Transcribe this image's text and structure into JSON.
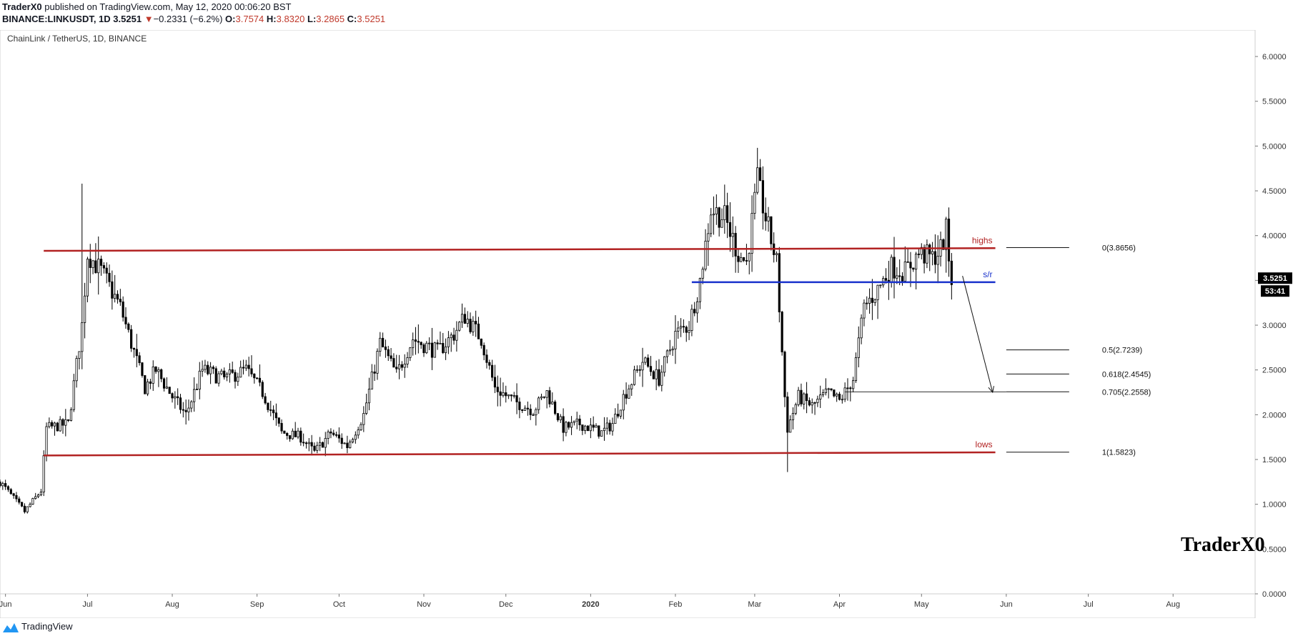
{
  "header": {
    "author": "TraderX0",
    "published": " published on TradingView.com, May 12, 2020 00:06:20 BST",
    "symbol": "BINANCE:LINKUSDT, 1D",
    "last": "3.5251",
    "change_arrow": "▼",
    "change": "−0.2331 (−6.2%)",
    "o_label": "O:",
    "o": "3.7574",
    "h_label": "H:",
    "h": "3.8320",
    "l_label": "L:",
    "l": "3.2865",
    "c_label": "C:",
    "c": "3.5251"
  },
  "chart_data": {
    "type": "candlestick",
    "title": "ChainLink / TetherUS, 1D, BINANCE",
    "watermark": "TraderX0",
    "ylim": [
      0,
      6.2
    ],
    "y_ticks": [
      "6.0000",
      "5.5000",
      "5.0000",
      "4.5000",
      "4.0000",
      "3.5000",
      "3.0000",
      "2.5000",
      "2.0000",
      "1.5000",
      "1.0000",
      "0.5000",
      "0.0000"
    ],
    "x_tick_labels": [
      "Jun",
      "Jul",
      "Aug",
      "Sep",
      "Oct",
      "Nov",
      "Dec",
      "2020",
      "Feb",
      "Mar",
      "Apr",
      "May",
      "Jun",
      "Jul",
      "Aug"
    ],
    "x_range": [
      "2019-05-30",
      "2020-08-31"
    ],
    "x_ticks": [
      "2019-06-01",
      "2019-07-01",
      "2019-08-01",
      "2019-09-01",
      "2019-10-01",
      "2019-11-01",
      "2019-12-01",
      "2020-01-01",
      "2020-02-01",
      "2020-03-01",
      "2020-04-01",
      "2020-05-01",
      "2020-06-01",
      "2020-07-01",
      "2020-08-01"
    ],
    "price_path": [
      [
        "2019-05-30",
        1.25
      ],
      [
        "2019-06-08",
        0.92
      ],
      [
        "2019-06-14",
        1.15
      ],
      [
        "2019-06-16",
        1.85
      ],
      [
        "2019-06-24",
        1.9
      ],
      [
        "2019-06-29",
        3.0
      ],
      [
        "2019-07-01",
        3.8
      ],
      [
        "2019-07-06",
        3.6
      ],
      [
        "2019-07-13",
        3.2
      ],
      [
        "2019-07-18",
        2.7
      ],
      [
        "2019-07-22",
        2.3
      ],
      [
        "2019-07-26",
        2.5
      ],
      [
        "2019-08-01",
        2.2
      ],
      [
        "2019-08-06",
        2.0
      ],
      [
        "2019-08-12",
        2.5
      ],
      [
        "2019-08-20",
        2.4
      ],
      [
        "2019-08-28",
        2.5
      ],
      [
        "2019-09-03",
        2.25
      ],
      [
        "2019-09-10",
        1.8
      ],
      [
        "2019-09-17",
        1.75
      ],
      [
        "2019-09-22",
        1.58
      ],
      [
        "2019-09-28",
        1.8
      ],
      [
        "2019-10-04",
        1.65
      ],
      [
        "2019-10-10",
        2.0
      ],
      [
        "2019-10-16",
        2.8
      ],
      [
        "2019-10-22",
        2.45
      ],
      [
        "2019-10-28",
        2.85
      ],
      [
        "2019-11-06",
        2.7
      ],
      [
        "2019-11-12",
        2.9
      ],
      [
        "2019-11-16",
        3.1
      ],
      [
        "2019-11-22",
        2.85
      ],
      [
        "2019-11-27",
        2.3
      ],
      [
        "2019-12-04",
        2.15
      ],
      [
        "2019-12-11",
        2.05
      ],
      [
        "2019-12-16",
        2.25
      ],
      [
        "2019-12-22",
        1.85
      ],
      [
        "2019-12-28",
        1.9
      ],
      [
        "2020-01-05",
        1.8
      ],
      [
        "2020-01-09",
        1.9
      ],
      [
        "2020-01-13",
        2.2
      ],
      [
        "2020-01-20",
        2.6
      ],
      [
        "2020-01-26",
        2.4
      ],
      [
        "2020-02-01",
        2.9
      ],
      [
        "2020-02-06",
        3.0
      ],
      [
        "2020-02-10",
        3.5
      ],
      [
        "2020-02-14",
        4.3
      ],
      [
        "2020-02-19",
        4.2
      ],
      [
        "2020-02-24",
        3.8
      ],
      [
        "2020-02-27",
        3.7
      ],
      [
        "2020-03-02",
        4.6
      ],
      [
        "2020-03-05",
        4.2
      ],
      [
        "2020-03-09",
        3.7
      ],
      [
        "2020-03-12",
        2.2
      ],
      [
        "2020-03-13",
        1.85
      ],
      [
        "2020-03-17",
        2.2
      ],
      [
        "2020-03-22",
        2.1
      ],
      [
        "2020-03-28",
        2.25
      ],
      [
        "2020-04-01",
        2.15
      ],
      [
        "2020-04-06",
        2.4
      ],
      [
        "2020-04-10",
        3.2
      ],
      [
        "2020-04-15",
        3.4
      ],
      [
        "2020-04-20",
        3.65
      ],
      [
        "2020-04-25",
        3.6
      ],
      [
        "2020-04-30",
        3.8
      ],
      [
        "2020-05-05",
        3.75
      ],
      [
        "2020-05-08",
        3.85
      ],
      [
        "2020-05-10",
        4.05
      ],
      [
        "2020-05-11",
        3.76
      ],
      [
        "2020-05-12",
        3.5251
      ]
    ],
    "lines": [
      {
        "label": "highs",
        "color": "#b22222",
        "x": [
          "2019-06-15",
          "2020-05-28"
        ],
        "y": [
          3.83,
          3.86
        ]
      },
      {
        "label": "lows",
        "color": "#b22222",
        "x": [
          "2019-06-15",
          "2020-05-28"
        ],
        "y": [
          1.545,
          1.58
        ]
      },
      {
        "label": "s/r",
        "color": "#1a33cc",
        "x": [
          "2020-02-07",
          "2020-05-28"
        ],
        "y": [
          3.48,
          3.48
        ]
      }
    ],
    "fib_levels": [
      {
        "label": "0(3.8656)",
        "value": 3.8656
      },
      {
        "label": "0.5(2.7239)",
        "value": 2.7239
      },
      {
        "label": "0.618(2.4545)",
        "value": 2.4545
      },
      {
        "label": "0.705(2.2558)",
        "value": 2.2558
      },
      {
        "label": "1(1.5823)",
        "value": 1.5823
      }
    ],
    "projection_arrow": {
      "from": [
        "2020-05-16",
        3.55
      ],
      "to": [
        "2020-05-27",
        2.25
      ]
    },
    "price_label": "3.5251",
    "countdown": "53:41"
  },
  "footer": {
    "brand": "TradingView"
  }
}
